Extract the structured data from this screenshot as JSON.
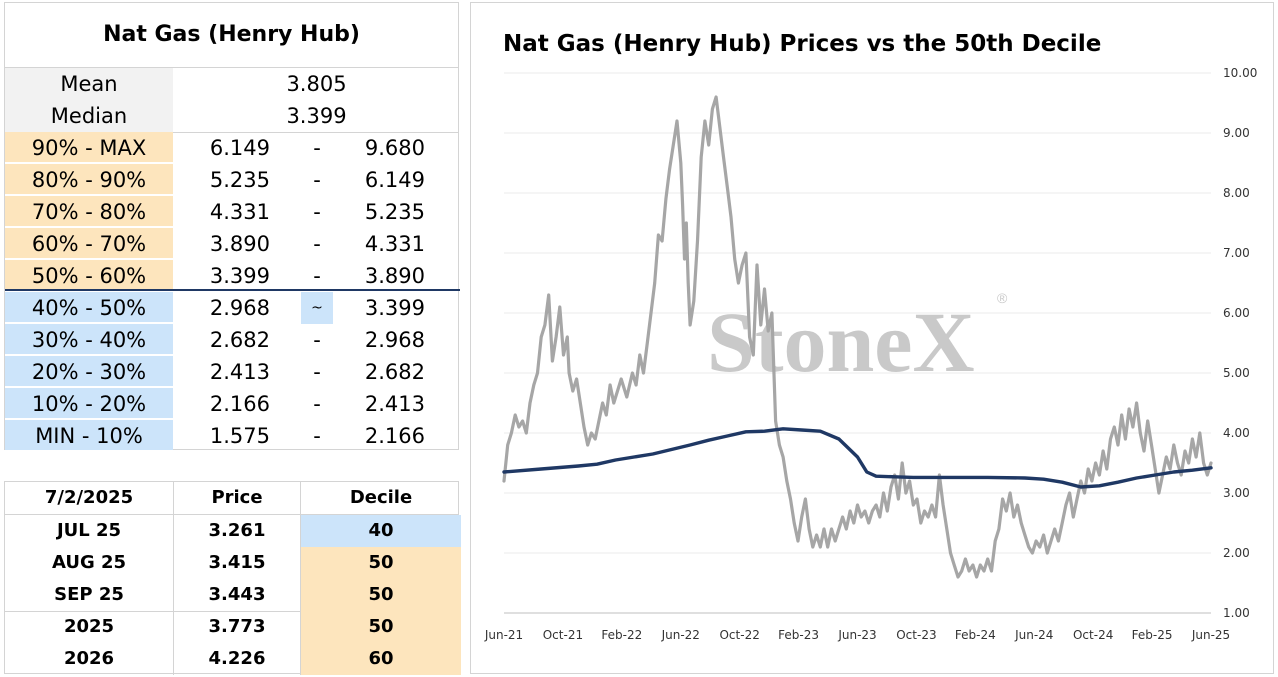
{
  "stats": {
    "title": "Nat Gas (Henry Hub)",
    "mean_label": "Mean",
    "mean_value": "3.805",
    "median_label": "Median",
    "median_value": "3.399",
    "deciles": [
      {
        "label": "90% - MAX",
        "low": "6.149",
        "sep": "-",
        "high": "9.680",
        "color": "peach"
      },
      {
        "label": "80% - 90%",
        "low": "5.235",
        "sep": "-",
        "high": "6.149",
        "color": "peach"
      },
      {
        "label": "70% - 80%",
        "low": "4.331",
        "sep": "-",
        "high": "5.235",
        "color": "peach"
      },
      {
        "label": "60% - 70%",
        "low": "3.890",
        "sep": "-",
        "high": "4.331",
        "color": "peach"
      },
      {
        "label": "50% - 60%",
        "low": "3.399",
        "sep": "-",
        "high": "3.890",
        "color": "peach"
      },
      {
        "label": "40% - 50%",
        "low": "2.968",
        "sep": "~",
        "high": "3.399",
        "color": "blue"
      },
      {
        "label": "30% - 40%",
        "low": "2.682",
        "sep": "-",
        "high": "2.968",
        "color": "blue"
      },
      {
        "label": "20% - 30%",
        "low": "2.413",
        "sep": "-",
        "high": "2.682",
        "color": "blue"
      },
      {
        "label": "10% - 20%",
        "low": "2.166",
        "sep": "-",
        "high": "2.413",
        "color": "blue"
      },
      {
        "label": "MIN - 10%",
        "low": "1.575",
        "sep": "-",
        "high": "2.166",
        "color": "blue"
      }
    ]
  },
  "forward": {
    "headers": [
      "7/2/2025",
      "Price",
      "Decile"
    ],
    "rows": [
      {
        "contract": "JUL 25",
        "price": "3.261",
        "decile": "40",
        "color": "blue"
      },
      {
        "contract": "AUG 25",
        "price": "3.415",
        "decile": "50",
        "color": "peach"
      },
      {
        "contract": "SEP 25",
        "price": "3.443",
        "decile": "50",
        "color": "peach"
      },
      {
        "contract": "2025",
        "price": "3.773",
        "decile": "50",
        "color": "peach"
      },
      {
        "contract": "2026",
        "price": "4.226",
        "decile": "60",
        "color": "peach"
      }
    ]
  },
  "colors": {
    "price": "#a6a6a6",
    "median": "#1f3864",
    "peach": "#fde5bd",
    "blue": "#cce4fa"
  },
  "chart_data": {
    "type": "line",
    "title": "Nat Gas (Henry Hub) Prices vs the 50th Decile",
    "watermark": "StoneX",
    "watermark_mark": "®",
    "xlabel": "",
    "ylabel": "",
    "ylim": [
      1.0,
      10.0
    ],
    "y_ticks": [
      "1.00",
      "2.00",
      "3.00",
      "4.00",
      "5.00",
      "6.00",
      "7.00",
      "8.00",
      "9.00",
      "10.00"
    ],
    "y_axis_position": "right",
    "x_ticks": [
      "Jun-21",
      "Oct-21",
      "Feb-22",
      "Jun-22",
      "Oct-22",
      "Feb-23",
      "Jun-23",
      "Oct-23",
      "Feb-24",
      "Jun-24",
      "Oct-24",
      "Feb-25",
      "Jun-25"
    ],
    "x_start": "Jun-21",
    "x_end": "Jun-25",
    "grid": "horizontal",
    "series": [
      {
        "role": "price",
        "color": "#a6a6a6",
        "points": [
          [
            0.0,
            3.2
          ],
          [
            0.2,
            3.8
          ],
          [
            0.4,
            4.0
          ],
          [
            0.6,
            4.3
          ],
          [
            0.8,
            4.1
          ],
          [
            1.0,
            4.2
          ],
          [
            1.2,
            4.0
          ],
          [
            1.4,
            4.5
          ],
          [
            1.6,
            4.8
          ],
          [
            1.8,
            5.0
          ],
          [
            2.0,
            5.6
          ],
          [
            2.2,
            5.8
          ],
          [
            2.4,
            6.3
          ],
          [
            2.6,
            5.2
          ],
          [
            2.8,
            5.6
          ],
          [
            3.0,
            6.1
          ],
          [
            3.2,
            5.3
          ],
          [
            3.4,
            5.6
          ],
          [
            3.5,
            5.0
          ],
          [
            3.7,
            4.7
          ],
          [
            3.9,
            4.9
          ],
          [
            4.1,
            4.5
          ],
          [
            4.3,
            4.1
          ],
          [
            4.5,
            3.8
          ],
          [
            4.7,
            4.0
          ],
          [
            4.9,
            3.9
          ],
          [
            5.1,
            4.2
          ],
          [
            5.3,
            4.5
          ],
          [
            5.5,
            4.3
          ],
          [
            5.7,
            4.8
          ],
          [
            5.9,
            4.5
          ],
          [
            6.1,
            4.7
          ],
          [
            6.3,
            4.9
          ],
          [
            6.6,
            4.6
          ],
          [
            6.9,
            5.0
          ],
          [
            7.1,
            4.8
          ],
          [
            7.3,
            5.3
          ],
          [
            7.5,
            5.0
          ],
          [
            7.7,
            5.5
          ],
          [
            7.9,
            6.0
          ],
          [
            8.1,
            6.5
          ],
          [
            8.3,
            7.3
          ],
          [
            8.5,
            7.2
          ],
          [
            8.7,
            7.9
          ],
          [
            8.9,
            8.4
          ],
          [
            9.1,
            8.8
          ],
          [
            9.3,
            9.2
          ],
          [
            9.5,
            8.5
          ],
          [
            9.6,
            7.8
          ],
          [
            9.7,
            6.9
          ],
          [
            9.8,
            7.5
          ],
          [
            9.9,
            6.5
          ],
          [
            10.0,
            5.8
          ],
          [
            10.2,
            6.2
          ],
          [
            10.4,
            7.2
          ],
          [
            10.6,
            8.6
          ],
          [
            10.8,
            9.2
          ],
          [
            11.0,
            8.8
          ],
          [
            11.2,
            9.4
          ],
          [
            11.4,
            9.6
          ],
          [
            11.6,
            9.1
          ],
          [
            11.8,
            8.6
          ],
          [
            12.0,
            8.1
          ],
          [
            12.2,
            7.6
          ],
          [
            12.4,
            6.9
          ],
          [
            12.6,
            6.5
          ],
          [
            12.8,
            6.8
          ],
          [
            13.0,
            7.0
          ],
          [
            13.2,
            5.6
          ],
          [
            13.4,
            5.3
          ],
          [
            13.6,
            6.8
          ],
          [
            13.8,
            5.8
          ],
          [
            14.0,
            6.4
          ],
          [
            14.2,
            5.7
          ],
          [
            14.4,
            6.0
          ],
          [
            14.6,
            4.2
          ],
          [
            14.8,
            3.8
          ],
          [
            15.0,
            3.6
          ],
          [
            15.2,
            3.2
          ],
          [
            15.4,
            2.9
          ],
          [
            15.6,
            2.5
          ],
          [
            15.8,
            2.2
          ],
          [
            16.0,
            2.6
          ],
          [
            16.2,
            2.9
          ],
          [
            16.4,
            2.4
          ],
          [
            16.6,
            2.1
          ],
          [
            16.8,
            2.3
          ],
          [
            17.0,
            2.1
          ],
          [
            17.2,
            2.4
          ],
          [
            17.4,
            2.1
          ],
          [
            17.6,
            2.4
          ],
          [
            17.8,
            2.2
          ],
          [
            18.0,
            2.4
          ],
          [
            18.2,
            2.6
          ],
          [
            18.4,
            2.4
          ],
          [
            18.6,
            2.7
          ],
          [
            18.8,
            2.5
          ],
          [
            19.0,
            2.8
          ],
          [
            19.2,
            2.6
          ],
          [
            19.4,
            2.7
          ],
          [
            19.6,
            2.5
          ],
          [
            19.8,
            2.7
          ],
          [
            20.0,
            2.8
          ],
          [
            20.2,
            2.6
          ],
          [
            20.4,
            3.0
          ],
          [
            20.6,
            2.7
          ],
          [
            20.8,
            3.1
          ],
          [
            21.0,
            3.3
          ],
          [
            21.2,
            2.9
          ],
          [
            21.4,
            3.5
          ],
          [
            21.6,
            3.0
          ],
          [
            21.8,
            3.2
          ],
          [
            22.0,
            2.8
          ],
          [
            22.2,
            2.9
          ],
          [
            22.4,
            2.5
          ],
          [
            22.6,
            2.7
          ],
          [
            22.8,
            2.6
          ],
          [
            23.0,
            2.8
          ],
          [
            23.2,
            2.6
          ],
          [
            23.4,
            3.3
          ],
          [
            23.6,
            2.8
          ],
          [
            23.8,
            2.4
          ],
          [
            24.0,
            2.0
          ],
          [
            24.2,
            1.8
          ],
          [
            24.4,
            1.6
          ],
          [
            24.6,
            1.7
          ],
          [
            24.8,
            1.9
          ],
          [
            25.0,
            1.7
          ],
          [
            25.2,
            1.8
          ],
          [
            25.4,
            1.6
          ],
          [
            25.6,
            1.8
          ],
          [
            25.8,
            1.7
          ],
          [
            26.0,
            1.9
          ],
          [
            26.2,
            1.7
          ],
          [
            26.4,
            2.2
          ],
          [
            26.6,
            2.4
          ],
          [
            26.8,
            2.9
          ],
          [
            27.0,
            2.7
          ],
          [
            27.2,
            3.0
          ],
          [
            27.4,
            2.6
          ],
          [
            27.6,
            2.8
          ],
          [
            27.8,
            2.5
          ],
          [
            28.0,
            2.3
          ],
          [
            28.2,
            2.1
          ],
          [
            28.4,
            2.0
          ],
          [
            28.6,
            2.2
          ],
          [
            28.8,
            2.1
          ],
          [
            29.0,
            2.3
          ],
          [
            29.2,
            2.0
          ],
          [
            29.4,
            2.2
          ],
          [
            29.6,
            2.4
          ],
          [
            29.8,
            2.2
          ],
          [
            30.0,
            2.5
          ],
          [
            30.2,
            2.8
          ],
          [
            30.4,
            3.0
          ],
          [
            30.6,
            2.6
          ],
          [
            30.8,
            2.9
          ],
          [
            31.0,
            3.2
          ],
          [
            31.2,
            3.0
          ],
          [
            31.4,
            3.4
          ],
          [
            31.6,
            3.2
          ],
          [
            31.8,
            3.5
          ],
          [
            32.0,
            3.3
          ],
          [
            32.2,
            3.7
          ],
          [
            32.4,
            3.4
          ],
          [
            32.6,
            3.9
          ],
          [
            32.8,
            4.1
          ],
          [
            33.0,
            3.8
          ],
          [
            33.2,
            4.3
          ],
          [
            33.4,
            3.9
          ],
          [
            33.6,
            4.4
          ],
          [
            33.8,
            4.1
          ],
          [
            34.0,
            4.5
          ],
          [
            34.2,
            4.0
          ],
          [
            34.4,
            3.7
          ],
          [
            34.6,
            4.2
          ],
          [
            34.8,
            3.8
          ],
          [
            35.0,
            3.4
          ],
          [
            35.2,
            3.0
          ],
          [
            35.4,
            3.3
          ],
          [
            35.6,
            3.6
          ],
          [
            35.8,
            3.4
          ],
          [
            36.0,
            3.8
          ],
          [
            36.2,
            3.5
          ],
          [
            36.4,
            3.3
          ],
          [
            36.6,
            3.7
          ],
          [
            36.8,
            3.5
          ],
          [
            37.0,
            3.9
          ],
          [
            37.2,
            3.6
          ],
          [
            37.4,
            4.0
          ],
          [
            37.6,
            3.5
          ],
          [
            37.8,
            3.3
          ],
          [
            38.0,
            3.5
          ]
        ]
      },
      {
        "role": "50th decile",
        "color": "#1f3864",
        "points": [
          [
            0.0,
            3.35
          ],
          [
            2,
            3.4
          ],
          [
            4,
            3.45
          ],
          [
            5,
            3.48
          ],
          [
            6,
            3.55
          ],
          [
            8,
            3.65
          ],
          [
            10,
            3.8
          ],
          [
            11,
            3.88
          ],
          [
            12,
            3.95
          ],
          [
            13,
            4.02
          ],
          [
            14,
            4.03
          ],
          [
            15,
            4.07
          ],
          [
            16,
            4.05
          ],
          [
            17,
            4.03
          ],
          [
            18,
            3.9
          ],
          [
            19,
            3.6
          ],
          [
            19.5,
            3.35
          ],
          [
            20,
            3.28
          ],
          [
            21,
            3.27
          ],
          [
            22,
            3.26
          ],
          [
            24,
            3.26
          ],
          [
            26,
            3.26
          ],
          [
            28,
            3.25
          ],
          [
            29,
            3.23
          ],
          [
            30,
            3.18
          ],
          [
            31,
            3.1
          ],
          [
            32,
            3.12
          ],
          [
            33,
            3.18
          ],
          [
            34,
            3.25
          ],
          [
            35,
            3.3
          ],
          [
            36,
            3.35
          ],
          [
            37,
            3.38
          ],
          [
            38,
            3.42
          ]
        ]
      }
    ]
  }
}
